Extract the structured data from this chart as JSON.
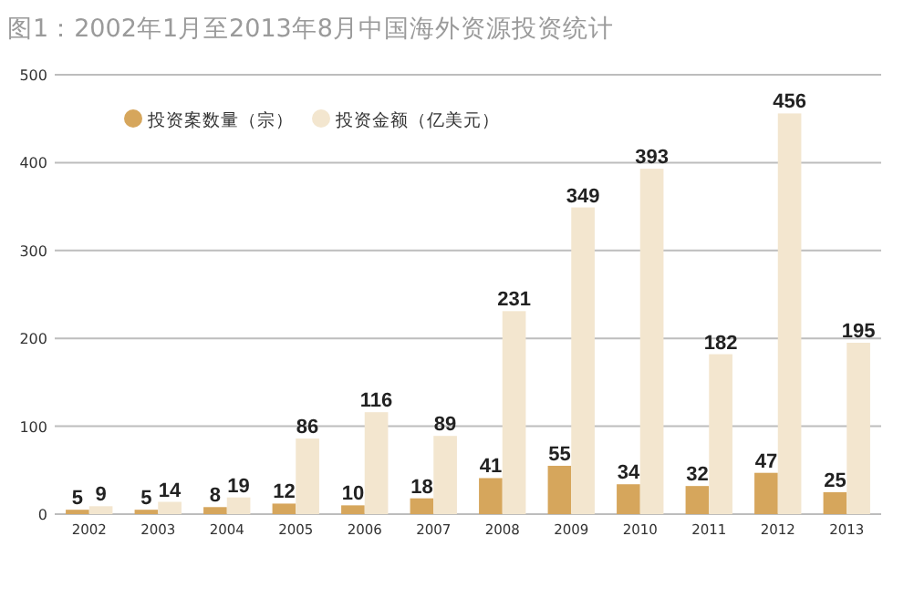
{
  "chart_data": {
    "type": "bar",
    "title": "图1：2002年1月至2013年8月中国海外资源投资统计",
    "categories": [
      "2002",
      "2003",
      "2004",
      "2005",
      "2006",
      "2007",
      "2008",
      "2009",
      "2010",
      "2011",
      "2012",
      "2013"
    ],
    "series": [
      {
        "name": "投资案数量（宗）",
        "color": "#d6a65c",
        "values": [
          5,
          5,
          8,
          12,
          10,
          18,
          41,
          55,
          34,
          32,
          47,
          25
        ]
      },
      {
        "name": "投资金额（亿美元）",
        "color": "#f3e6cf",
        "values": [
          9,
          14,
          19,
          86,
          116,
          89,
          231,
          349,
          393,
          182,
          456,
          195
        ]
      }
    ],
    "ylim": [
      0,
      500
    ],
    "yticks": [
      0,
      100,
      200,
      300,
      400,
      500
    ],
    "grid": "y",
    "legend": "top left",
    "data_labels": true
  }
}
